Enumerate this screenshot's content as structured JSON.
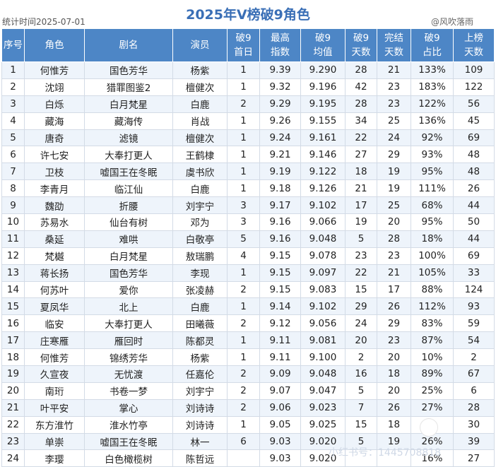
{
  "header": {
    "title": "2025年V榜破9角色",
    "stat_date": "统计时间2025-07-01",
    "watermark": "@风吹落雨"
  },
  "footer": {
    "watermark": "小红书号：1445708818"
  },
  "chart_data": {
    "type": "table",
    "title": "2025年V榜破9角色",
    "columns": [
      [
        "序号"
      ],
      [
        "角色"
      ],
      [
        "剧名"
      ],
      [
        "演员"
      ],
      [
        "破9",
        "首日"
      ],
      [
        "最高",
        "指数"
      ],
      [
        "破9",
        "均值"
      ],
      [
        "破9",
        "天数"
      ],
      [
        "完结",
        "天数"
      ],
      [
        "破9",
        "占比"
      ],
      [
        "上榜",
        "天数"
      ]
    ],
    "rows": [
      [
        "1",
        "何惟芳",
        "国色芳华",
        "杨紫",
        "1",
        "9.39",
        "9.290",
        "28",
        "21",
        "133%",
        "109"
      ],
      [
        "2",
        "沈翊",
        "猎罪图鉴2",
        "檀健次",
        "1",
        "9.32",
        "9.196",
        "42",
        "23",
        "183%",
        "122"
      ],
      [
        "3",
        "白烁",
        "白月梵星",
        "白鹿",
        "2",
        "9.29",
        "9.195",
        "28",
        "23",
        "122%",
        "56"
      ],
      [
        "4",
        "藏海",
        "藏海传",
        "肖战",
        "1",
        "9.26",
        "9.155",
        "34",
        "25",
        "136%",
        "45"
      ],
      [
        "5",
        "唐奇",
        "滤镜",
        "檀健次",
        "1",
        "9.24",
        "9.161",
        "22",
        "24",
        "92%",
        "69"
      ],
      [
        "6",
        "许七安",
        "大奉打更人",
        "王鹤棣",
        "1",
        "9.21",
        "9.146",
        "27",
        "29",
        "93%",
        "48"
      ],
      [
        "7",
        "卫枝",
        "嘘国王在冬眠",
        "虞书欣",
        "1",
        "9.19",
        "9.122",
        "18",
        "19",
        "95%",
        "48"
      ],
      [
        "8",
        "李青月",
        "临江仙",
        "白鹿",
        "1",
        "9.18",
        "9.126",
        "21",
        "19",
        "111%",
        "26"
      ],
      [
        "9",
        "魏劭",
        "折腰",
        "刘宇宁",
        "3",
        "9.17",
        "9.102",
        "17",
        "25",
        "68%",
        "44"
      ],
      [
        "10",
        "苏易水",
        "仙台有树",
        "邓为",
        "3",
        "9.16",
        "9.066",
        "19",
        "20",
        "95%",
        "50"
      ],
      [
        "11",
        "桑延",
        "难哄",
        "白敬亭",
        "5",
        "9.16",
        "9.048",
        "5",
        "28",
        "18%",
        "44"
      ],
      [
        "12",
        "梵樾",
        "白月梵星",
        "敖瑞鹏",
        "4",
        "9.15",
        "9.078",
        "23",
        "23",
        "100%",
        "69"
      ],
      [
        "13",
        "蒋长扬",
        "国色芳华",
        "李现",
        "1",
        "9.15",
        "9.097",
        "22",
        "21",
        "105%",
        "33"
      ],
      [
        "14",
        "何苏叶",
        "爱你",
        "张凌赫",
        "2",
        "9.15",
        "9.083",
        "15",
        "17",
        "88%",
        "124"
      ],
      [
        "15",
        "夏凤华",
        "北上",
        "白鹿",
        "1",
        "9.14",
        "9.102",
        "29",
        "26",
        "112%",
        "93"
      ],
      [
        "16",
        "临安",
        "大奉打更人",
        "田曦薇",
        "2",
        "9.12",
        "9.056",
        "24",
        "29",
        "83%",
        "59"
      ],
      [
        "17",
        "庄寒雁",
        "雁回时",
        "陈都灵",
        "1",
        "9.11",
        "9.081",
        "20",
        "23",
        "87%",
        "54"
      ],
      [
        "18",
        "何惟芳",
        "锦绣芳华",
        "杨紫",
        "1",
        "9.11",
        "9.100",
        "2",
        "20",
        "10%",
        "2"
      ],
      [
        "19",
        "久宣夜",
        "无忧渡",
        "任嘉伦",
        "2",
        "9.09",
        "9.048",
        "16",
        "18",
        "89%",
        "67"
      ],
      [
        "20",
        "南珩",
        "书卷一梦",
        "刘宇宁",
        "2",
        "9.07",
        "9.047",
        "5",
        "20",
        "25%",
        "6"
      ],
      [
        "21",
        "叶平安",
        "掌心",
        "刘诗诗",
        "2",
        "9.06",
        "9.023",
        "7",
        "26",
        "27%",
        "28"
      ],
      [
        "22",
        "东方淮竹",
        "淮水竹亭",
        "刘诗诗",
        "1",
        "9.05",
        "9.025",
        "15",
        "18",
        "",
        "30"
      ],
      [
        "23",
        "单崇",
        "嘘国王在冬眠",
        "林一",
        "6",
        "9.03",
        "9.020",
        "5",
        "19",
        "26%",
        "39"
      ],
      [
        "24",
        "李璎",
        "白色橄榄树",
        "陈哲远",
        "",
        "9.03",
        "9.020",
        "",
        "",
        "16%",
        "27"
      ]
    ]
  }
}
